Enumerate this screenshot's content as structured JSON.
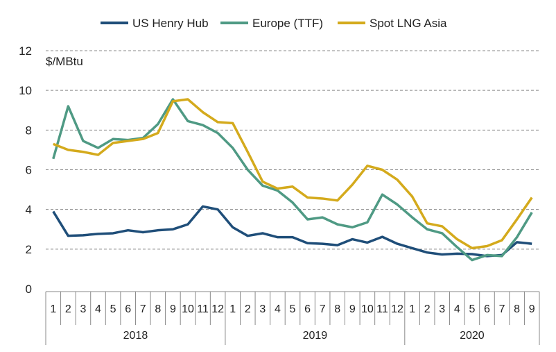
{
  "chart_data": {
    "type": "line",
    "ylabel": "$/MBtu",
    "ylim": [
      0,
      12
    ],
    "yticks": [
      0,
      2,
      4,
      6,
      8,
      10,
      12
    ],
    "grid": "horizontal dashed",
    "legend": "top",
    "months": [
      "1",
      "2",
      "3",
      "4",
      "5",
      "6",
      "7",
      "8",
      "9",
      "10",
      "11",
      "12",
      "1",
      "2",
      "3",
      "4",
      "5",
      "6",
      "7",
      "8",
      "9",
      "10",
      "11",
      "12",
      "1",
      "2",
      "3",
      "4",
      "5",
      "6",
      "7",
      "8",
      "9"
    ],
    "years": [
      {
        "label": "2018",
        "span": 12
      },
      {
        "label": "2019",
        "span": 12
      },
      {
        "label": "2020",
        "span": 9
      }
    ],
    "series": [
      {
        "name": "US Henry Hub",
        "color": "#1f4e79",
        "values": [
          3.9,
          2.67,
          2.7,
          2.77,
          2.8,
          2.95,
          2.85,
          2.95,
          3.0,
          3.25,
          4.15,
          4.0,
          3.1,
          2.67,
          2.8,
          2.6,
          2.6,
          2.3,
          2.27,
          2.2,
          2.5,
          2.33,
          2.62,
          2.27,
          2.05,
          1.83,
          1.73,
          1.77,
          1.75,
          1.65,
          1.7,
          2.35,
          2.27
        ]
      },
      {
        "name": "Europe (TTF)",
        "color": "#4f9a84",
        "values": [
          6.55,
          9.2,
          7.45,
          7.1,
          7.55,
          7.5,
          7.6,
          8.3,
          9.55,
          8.45,
          8.25,
          7.85,
          7.1,
          6.0,
          5.2,
          4.95,
          4.35,
          3.5,
          3.6,
          3.25,
          3.1,
          3.35,
          4.75,
          4.25,
          3.6,
          3.0,
          2.8,
          2.1,
          1.45,
          1.7,
          1.65,
          2.6,
          3.85
        ]
      },
      {
        "name": "Spot LNG Asia",
        "color": "#d4aa1c",
        "values": [
          7.3,
          7.0,
          6.9,
          6.75,
          7.35,
          7.45,
          7.55,
          7.85,
          9.45,
          9.55,
          8.9,
          8.4,
          8.35,
          6.9,
          5.4,
          5.05,
          5.15,
          4.6,
          4.55,
          4.45,
          5.25,
          6.2,
          6.0,
          5.5,
          4.65,
          3.3,
          3.15,
          2.5,
          2.05,
          2.15,
          2.45,
          3.5,
          4.6
        ]
      }
    ]
  }
}
